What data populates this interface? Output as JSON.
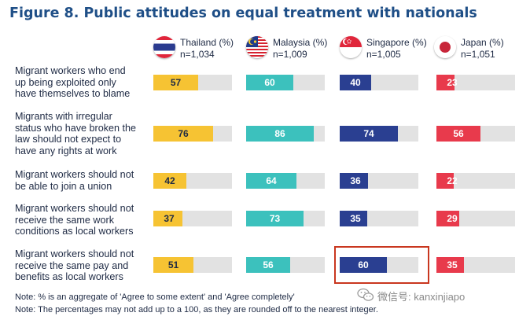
{
  "title": "Figure 8. Public attitudes on equal treatment with nationals",
  "countries": [
    {
      "name": "Thailand (%)",
      "n": "n=1,034",
      "flag": "thailand-flag"
    },
    {
      "name": "Malaysia (%)",
      "n": "n=1,009",
      "flag": "malaysia-flag"
    },
    {
      "name": "Singapore (%)",
      "n": "n=1,005",
      "flag": "singapore-flag"
    },
    {
      "name": "Japan (%)",
      "n": "n=1,051",
      "flag": "japan-flag"
    }
  ],
  "statements": [
    [
      "Migrant workers who end",
      "up being exploited only",
      "have themselves to blame"
    ],
    [
      "Migrants with irregular",
      "status who have broken the",
      "law should not expect to",
      "have any rights at work"
    ],
    [
      "Migrant workers should not",
      "be able to join a union"
    ],
    [
      "Migrant workers should not",
      "receive the same work",
      "conditions as local workers"
    ],
    [
      "Migrant workers should not",
      "receive the same pay and",
      "benefits as local workers"
    ]
  ],
  "colors": {
    "thailand": "#f6c333",
    "malaysia": "#3cc1bd",
    "singapore": "#2a3f91",
    "japan": "#e83a4c",
    "track": "#e2e2e2",
    "highlight": "#c9371f",
    "title": "#1f4f87"
  },
  "notes": [
    "Note: % is an aggregate of 'Agree to some extent' and 'Agree completely'",
    "Note: The percentages may not add up to a 100, as they are rounded off to the nearest integer."
  ],
  "watermark": "微信号: kanxinjiapo",
  "chart_data": {
    "type": "bar",
    "orientation": "horizontal",
    "title": "Figure 8. Public attitudes on equal treatment with nationals",
    "categories": [
      "Migrant workers who end up being exploited only have themselves to blame",
      "Migrants with irregular status who have broken the law should not expect to have any rights at work",
      "Migrant workers should not be able to join a union",
      "Migrant workers should not receive the same work conditions as local workers",
      "Migrant workers should not receive the same pay and benefits as local workers"
    ],
    "series": [
      {
        "name": "Thailand (%)",
        "values": [
          57,
          76,
          42,
          37,
          51
        ]
      },
      {
        "name": "Malaysia (%)",
        "values": [
          60,
          86,
          64,
          73,
          56
        ]
      },
      {
        "name": "Singapore (%)",
        "values": [
          40,
          74,
          36,
          35,
          60
        ]
      },
      {
        "name": "Japan (%)",
        "values": [
          23,
          56,
          22,
          29,
          35
        ]
      }
    ],
    "xlim": [
      0,
      100
    ],
    "highlighted": {
      "series": "Singapore (%)",
      "category_index": 4
    }
  }
}
